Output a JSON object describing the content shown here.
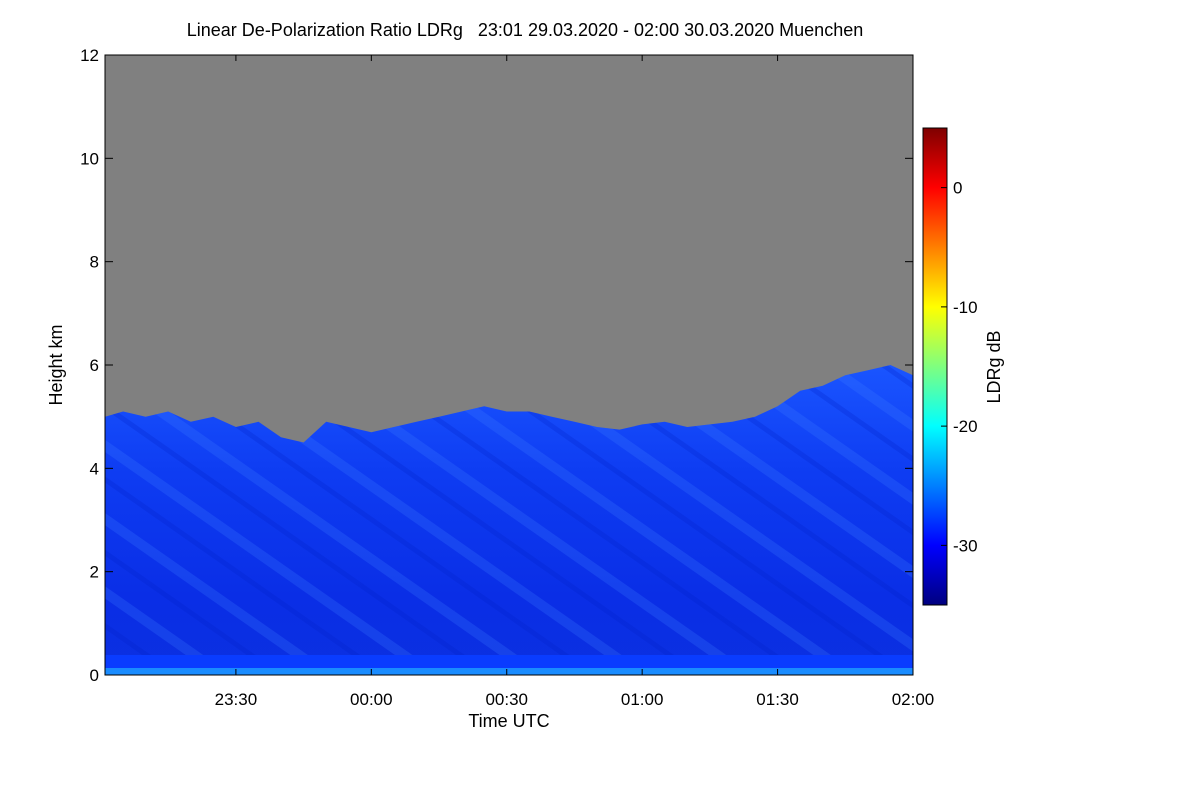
{
  "chart_data": {
    "type": "heatmap",
    "title": "Linear De-Polarization Ratio LDRg   23:01 29.03.2020 - 02:00 30.03.2020 Muenchen",
    "xlabel": "Time UTC",
    "ylabel": "Height km",
    "x_range_minutes": [
      -59,
      120
    ],
    "x_ticks": [
      {
        "minute": -30,
        "label": "23:30"
      },
      {
        "minute": 0,
        "label": "00:00"
      },
      {
        "minute": 30,
        "label": "00:30"
      },
      {
        "minute": 60,
        "label": "01:00"
      },
      {
        "minute": 90,
        "label": "01:30"
      },
      {
        "minute": 120,
        "label": "02:00"
      }
    ],
    "ylim": [
      0,
      12
    ],
    "y_ticks": [
      0,
      2,
      4,
      6,
      8,
      10,
      12
    ],
    "colorbar": {
      "label": "LDRg dB",
      "range": [
        -35,
        5
      ],
      "ticks": [
        0,
        -10,
        -20,
        -30
      ],
      "colors": [
        "#00007f",
        "#0000ff",
        "#007fff",
        "#00ffff",
        "#7fff7f",
        "#ffff00",
        "#ff7f00",
        "#ff0000",
        "#7f0000"
      ]
    },
    "no_signal_color": "#808080",
    "signal_top_km": [
      {
        "minute": -59,
        "height": 5.0
      },
      {
        "minute": -55,
        "height": 5.1
      },
      {
        "minute": -50,
        "height": 5.0
      },
      {
        "minute": -45,
        "height": 5.1
      },
      {
        "minute": -40,
        "height": 4.9
      },
      {
        "minute": -35,
        "height": 5.0
      },
      {
        "minute": -30,
        "height": 4.8
      },
      {
        "minute": -25,
        "height": 4.9
      },
      {
        "minute": -20,
        "height": 4.6
      },
      {
        "minute": -15,
        "height": 4.5
      },
      {
        "minute": -10,
        "height": 4.9
      },
      {
        "minute": -5,
        "height": 4.8
      },
      {
        "minute": 0,
        "height": 4.7
      },
      {
        "minute": 5,
        "height": 4.8
      },
      {
        "minute": 10,
        "height": 4.9
      },
      {
        "minute": 15,
        "height": 5.0
      },
      {
        "minute": 20,
        "height": 5.1
      },
      {
        "minute": 25,
        "height": 5.2
      },
      {
        "minute": 30,
        "height": 5.1
      },
      {
        "minute": 35,
        "height": 5.1
      },
      {
        "minute": 40,
        "height": 5.0
      },
      {
        "minute": 45,
        "height": 4.9
      },
      {
        "minute": 50,
        "height": 4.8
      },
      {
        "minute": 55,
        "height": 4.75
      },
      {
        "minute": 60,
        "height": 4.85
      },
      {
        "minute": 65,
        "height": 4.9
      },
      {
        "minute": 70,
        "height": 4.8
      },
      {
        "minute": 75,
        "height": 4.85
      },
      {
        "minute": 80,
        "height": 4.9
      },
      {
        "minute": 85,
        "height": 5.0
      },
      {
        "minute": 90,
        "height": 5.2
      },
      {
        "minute": 95,
        "height": 5.5
      },
      {
        "minute": 100,
        "height": 5.6
      },
      {
        "minute": 105,
        "height": 5.8
      },
      {
        "minute": 110,
        "height": 5.9
      },
      {
        "minute": 115,
        "height": 6.0
      },
      {
        "minute": 120,
        "height": 5.8
      }
    ]
  }
}
